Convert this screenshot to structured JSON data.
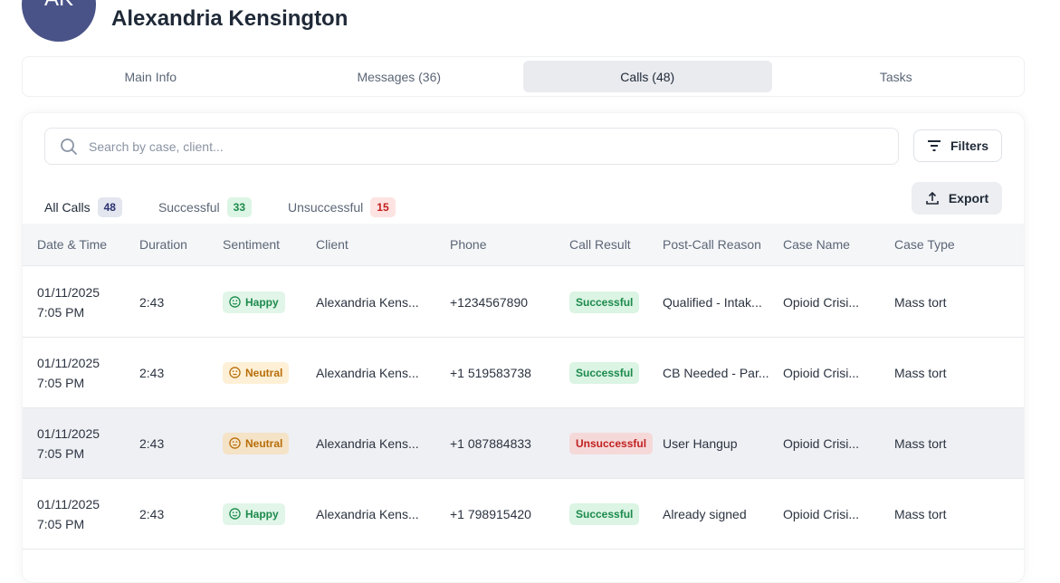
{
  "profile": {
    "initials": "AK",
    "name": "Alexandria Kensington"
  },
  "tabs": [
    {
      "label": "Main Info"
    },
    {
      "label": "Messages (36)"
    },
    {
      "label": "Calls (48)",
      "active": true
    },
    {
      "label": "Tasks"
    }
  ],
  "search": {
    "placeholder": "Search by case, client...",
    "value": ""
  },
  "filters_label": "Filters",
  "export_label": "Export",
  "subtabs": [
    {
      "label": "All Calls",
      "count": "48"
    },
    {
      "label": "Successful",
      "count": "33"
    },
    {
      "label": "Unsuccessful",
      "count": "15"
    }
  ],
  "colors": {
    "avatar": "#4a5388",
    "happy": "#1c8a4c",
    "neutral": "#b86e0a",
    "unsuccessful": "#c21f1f"
  },
  "columns": [
    "Date & Time",
    "Duration",
    "Sentiment",
    "Client",
    "Phone",
    "Call Result",
    "Post-Call Reason",
    "Case Name",
    "Case Type"
  ],
  "rows": [
    {
      "date": "01/11/2025",
      "time": "7:05 PM",
      "duration": "2:43",
      "sentiment": "Happy",
      "client": "Alexandria Kens...",
      "phone": "+1234567890",
      "result": "Successful",
      "reason": "Qualified - Intak...",
      "case_name": "Opioid Crisi...",
      "case_type": "Mass tort"
    },
    {
      "date": "01/11/2025",
      "time": "7:05 PM",
      "duration": "2:43",
      "sentiment": "Neutral",
      "client": "Alexandria Kens...",
      "phone": "+1 519583738",
      "result": "Successful",
      "reason": "CB Needed - Par...",
      "case_name": "Opioid Crisi...",
      "case_type": "Mass tort"
    },
    {
      "date": "01/11/2025",
      "time": "7:05 PM",
      "duration": "2:43",
      "sentiment": "Neutral",
      "client": "Alexandria Kens...",
      "phone": "+1 087884833",
      "result": "Unsuccessful",
      "reason": "User Hangup",
      "case_name": "Opioid Crisi...",
      "case_type": "Mass tort"
    },
    {
      "date": "01/11/2025",
      "time": "7:05 PM",
      "duration": "2:43",
      "sentiment": "Happy",
      "client": "Alexandria Kens...",
      "phone": "+1 798915420",
      "result": "Successful",
      "reason": "Already signed",
      "case_name": "Opioid Crisi...",
      "case_type": "Mass tort"
    }
  ]
}
